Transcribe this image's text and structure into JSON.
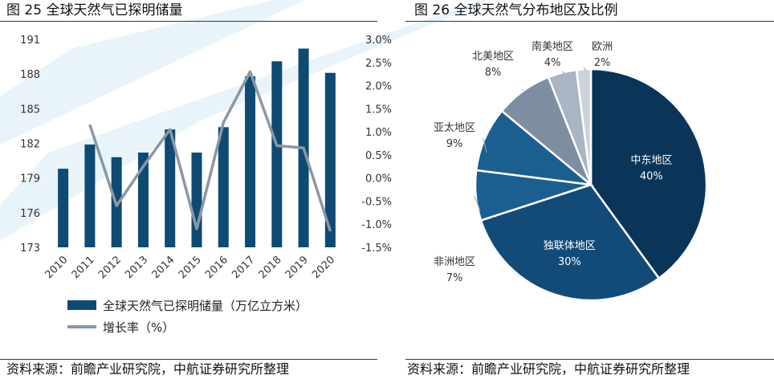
{
  "left_title": "图 25 全球天然气已探明储量",
  "right_title": "图 26 全球天然气分布地区及比例",
  "left_source": "资料来源：前瞻产业研究院，中航证券研究所整理",
  "right_source": "资料来源：前瞻产业研究院，中航证券研究所整理",
  "colors": {
    "bar": "#0e4a72",
    "line": "#8a97a6",
    "pie": [
      "#0b3558",
      "#124b78",
      "#1b5f90",
      "#1b5f90",
      "#7d8ea3",
      "#a9b5c3",
      "#cdd3dc"
    ]
  },
  "chart_data": [
    {
      "type": "bar+line",
      "title": "图 25 全球天然气已探明储量",
      "categories": [
        "2010",
        "2011",
        "2012",
        "2013",
        "2014",
        "2015",
        "2016",
        "2017",
        "2018",
        "2019",
        "2020"
      ],
      "series": [
        {
          "name": "全球天然气已探明储量（万亿立方米）",
          "type": "bar",
          "axis": "left",
          "values": [
            179.8,
            181.9,
            180.8,
            181.2,
            183.2,
            181.2,
            183.4,
            187.8,
            189.1,
            190.2,
            188.1
          ]
        },
        {
          "name": "增长率（%）",
          "type": "line",
          "axis": "right",
          "values": [
            null,
            1.15,
            -0.6,
            0.25,
            1.05,
            -1.1,
            1.2,
            2.3,
            0.7,
            0.65,
            -1.15
          ]
        }
      ],
      "left_axis": {
        "min": 173,
        "max": 191,
        "ticks": [
          "191",
          "188",
          "185",
          "182",
          "179",
          "176",
          "173"
        ]
      },
      "right_axis": {
        "min": -1.5,
        "max": 3.0,
        "ticks": [
          "3.0%",
          "2.5%",
          "2.0%",
          "1.5%",
          "1.0%",
          "0.5%",
          "0.0%",
          "-0.5%",
          "-1.0%",
          "-1.5%"
        ]
      },
      "legend": [
        "全球天然气已探明储量（万亿立方米）",
        "增长率（%）"
      ]
    },
    {
      "type": "pie",
      "title": "图 26 全球天然气分布地区及比例",
      "slices": [
        {
          "label": "中东地区",
          "value": 40,
          "pct": "40%"
        },
        {
          "label": "独联体地区",
          "value": 30,
          "pct": "30%"
        },
        {
          "label": "非洲地区",
          "value": 7,
          "pct": "7%"
        },
        {
          "label": "亚太地区",
          "value": 9,
          "pct": "9%"
        },
        {
          "label": "北美地区",
          "value": 8,
          "pct": "8%"
        },
        {
          "label": "南美地区",
          "value": 4,
          "pct": "4%"
        },
        {
          "label": "欧洲",
          "value": 2,
          "pct": "2%"
        }
      ]
    }
  ]
}
